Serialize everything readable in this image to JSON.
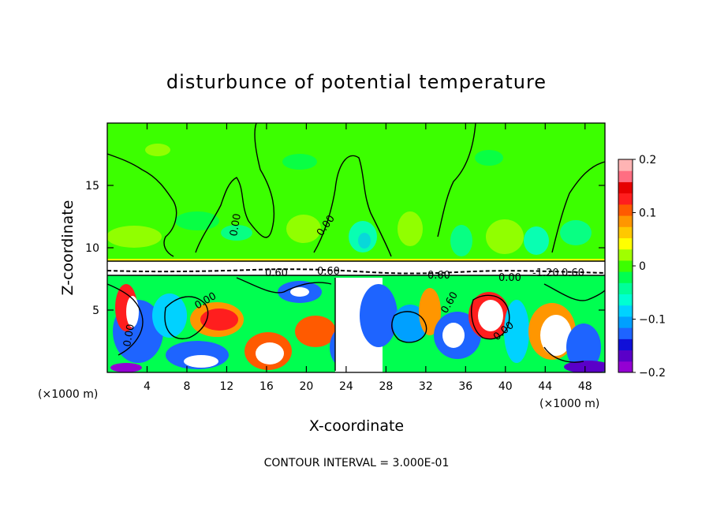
{
  "chart_data": {
    "type": "heatmap",
    "title": "disturbunce of potential temperature",
    "xlabel": "X-coordinate",
    "ylabel": "Z-coordinate",
    "x_unit_left": "(×1000 m)",
    "x_unit_right": "(×1000 m)",
    "xlim": [
      0,
      50
    ],
    "ylim": [
      0,
      20
    ],
    "xticks": [
      4,
      8,
      12,
      16,
      20,
      24,
      28,
      32,
      36,
      40,
      44,
      48
    ],
    "yticks": [
      5,
      10,
      15
    ],
    "colorbar": {
      "range": [
        -0.2,
        0.2
      ],
      "tick_labels": [
        "0.2",
        "0.1",
        "0",
        "−0.1",
        "−0.2"
      ],
      "tick_values": [
        0.2,
        0.1,
        0,
        -0.1,
        -0.2
      ],
      "colors": [
        "#9400d3",
        "#5a00c8",
        "#1010d8",
        "#1e64ff",
        "#00a0ff",
        "#00d2ff",
        "#00ffd2",
        "#00ff9a",
        "#00ff50",
        "#3cff00",
        "#a0ff00",
        "#ffff00",
        "#ffc800",
        "#ff9600",
        "#ff5a00",
        "#ff1e1e",
        "#e60000",
        "#ff6e82",
        "#ffb4b4"
      ]
    },
    "background_color": "#3cff00",
    "contour_labels": [
      "0.00",
      "0.00",
      "0.00",
      "0.00",
      "0.00",
      "0.60",
      "0.60",
      "0.60",
      "0.60",
      "0.00",
      "-1.20",
      "0.60"
    ],
    "contour_interval_text": "CONTOUR INTERVAL = 3.000E-01"
  }
}
